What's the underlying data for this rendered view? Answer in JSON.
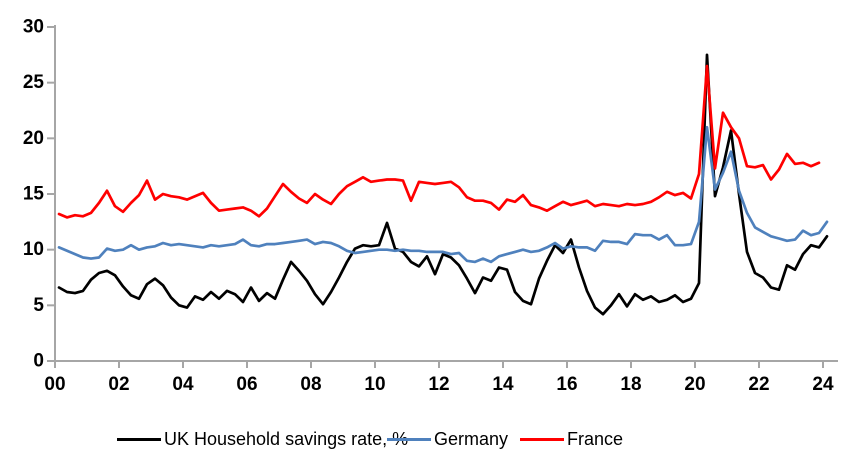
{
  "chart_data": {
    "type": "line",
    "title": "",
    "xlabel": "",
    "ylabel": "",
    "frequency": "quarterly",
    "x_start_year": 2000,
    "x_tick_labels": [
      "00",
      "02",
      "04",
      "06",
      "08",
      "10",
      "12",
      "14",
      "16",
      "18",
      "20",
      "22",
      "24"
    ],
    "y_ticks": [
      "0",
      "5",
      "10",
      "15",
      "20",
      "25",
      "30"
    ],
    "ylim": [
      0,
      30
    ],
    "grid": false,
    "legend_position": "bottom",
    "axis_color": "#A6A6A6",
    "background_color": "#FFFFFF",
    "series": [
      {
        "name": "UK Household savings rate, %",
        "color": "#000000",
        "values": [
          6.6,
          6.2,
          6.1,
          6.3,
          7.3,
          7.9,
          8.1,
          7.7,
          6.7,
          5.9,
          5.6,
          6.9,
          7.4,
          6.8,
          5.7,
          5.0,
          4.8,
          5.8,
          5.5,
          6.2,
          5.6,
          6.3,
          6.0,
          5.3,
          6.6,
          5.4,
          6.1,
          5.6,
          7.3,
          8.9,
          8.1,
          7.2,
          6.0,
          5.1,
          6.2,
          7.5,
          8.9,
          10.1,
          10.4,
          10.3,
          10.4,
          12.4,
          10.1,
          9.8,
          8.9,
          8.5,
          9.4,
          7.8,
          9.6,
          9.3,
          8.6,
          7.4,
          6.1,
          7.5,
          7.2,
          8.4,
          8.2,
          6.2,
          5.4,
          5.1,
          7.4,
          9.0,
          10.4,
          9.7,
          10.9,
          8.4,
          6.3,
          4.8,
          4.2,
          5.0,
          6.0,
          4.9,
          6.0,
          5.5,
          5.8,
          5.3,
          5.5,
          5.9,
          5.3,
          5.6,
          7.0,
          27.5,
          14.8,
          17.4,
          20.7,
          15.0,
          9.8,
          7.9,
          7.5,
          6.6,
          6.4,
          8.6,
          8.2,
          9.6,
          10.4,
          10.2,
          11.2
        ]
      },
      {
        "name": "Germany",
        "color": "#4F81BD",
        "values": [
          10.2,
          9.9,
          9.6,
          9.3,
          9.2,
          9.3,
          10.1,
          9.9,
          10.0,
          10.4,
          10.0,
          10.2,
          10.3,
          10.6,
          10.4,
          10.5,
          10.4,
          10.3,
          10.2,
          10.4,
          10.3,
          10.4,
          10.5,
          10.9,
          10.4,
          10.3,
          10.5,
          10.5,
          10.6,
          10.7,
          10.8,
          10.9,
          10.5,
          10.7,
          10.6,
          10.3,
          9.9,
          9.7,
          9.8,
          9.9,
          10.0,
          10.0,
          9.9,
          10.0,
          9.9,
          9.9,
          9.8,
          9.8,
          9.8,
          9.6,
          9.7,
          9.0,
          8.9,
          9.2,
          8.9,
          9.4,
          9.6,
          9.8,
          10.0,
          9.8,
          9.9,
          10.2,
          10.6,
          10.1,
          10.3,
          10.2,
          10.2,
          9.9,
          10.8,
          10.7,
          10.7,
          10.5,
          11.4,
          11.3,
          11.3,
          10.9,
          11.3,
          10.4,
          10.4,
          10.5,
          12.5,
          21.0,
          15.4,
          16.9,
          18.8,
          15.3,
          13.3,
          12.0,
          11.6,
          11.2,
          11.0,
          10.8,
          10.9,
          11.7,
          11.3,
          11.5,
          12.5
        ]
      },
      {
        "name": "France",
        "color": "#FF0000",
        "values": [
          13.2,
          12.9,
          13.1,
          13.0,
          13.3,
          14.2,
          15.3,
          13.9,
          13.4,
          14.2,
          14.9,
          16.2,
          14.5,
          15.0,
          14.8,
          14.7,
          14.5,
          14.8,
          15.1,
          14.2,
          13.5,
          13.6,
          13.7,
          13.8,
          13.5,
          13.0,
          13.7,
          14.8,
          15.9,
          15.2,
          14.6,
          14.2,
          15.0,
          14.5,
          14.1,
          15.0,
          15.7,
          16.1,
          16.5,
          16.1,
          16.2,
          16.3,
          16.3,
          16.2,
          14.4,
          16.1,
          16.0,
          15.9,
          16.0,
          16.1,
          15.6,
          14.7,
          14.4,
          14.4,
          14.2,
          13.6,
          14.5,
          14.3,
          14.9,
          14.0,
          13.8,
          13.5,
          13.9,
          14.3,
          14.0,
          14.2,
          14.4,
          13.9,
          14.1,
          14.0,
          13.9,
          14.1,
          14.0,
          14.1,
          14.3,
          14.7,
          15.2,
          14.9,
          15.1,
          14.6,
          16.8,
          26.5,
          17.3,
          22.3,
          21.0,
          20.0,
          17.5,
          17.4,
          17.6,
          16.3,
          17.2,
          18.6,
          17.7,
          17.8,
          17.5,
          17.8
        ]
      }
    ]
  }
}
